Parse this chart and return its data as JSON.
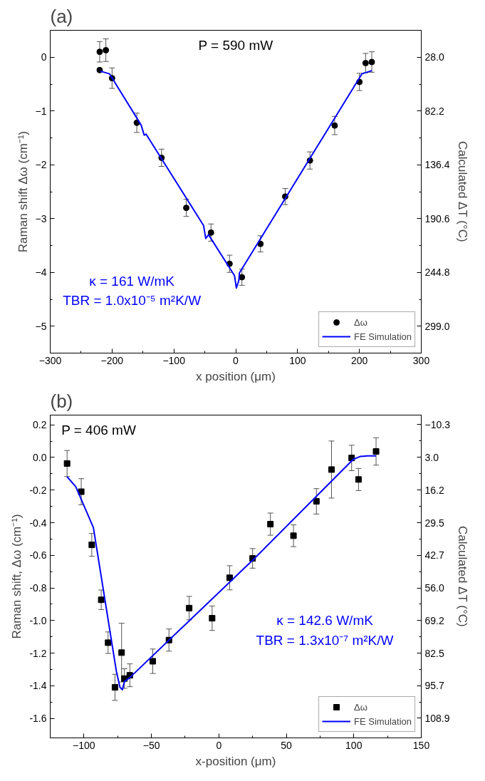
{
  "chart_data": [
    {
      "type": "scatter",
      "title": "(a)",
      "xlabel": "x position (μm)",
      "ylabel": "Raman shift Δω (cm⁻¹)",
      "y2label": "Calculated ΔT (°C)",
      "annotations": [
        "P = 590 mW",
        "κ = 161 W/mK",
        "TBR = 1.0x10⁻⁵ m²K/W"
      ],
      "xlim": [
        -300,
        300
      ],
      "xticks": [
        -300,
        -200,
        -100,
        0,
        100,
        200,
        300
      ],
      "ylim": [
        -5.5,
        0.5
      ],
      "yticks": [
        -5,
        -4,
        -3,
        -2,
        -1,
        0
      ],
      "y2lim": [
        326.1,
        0.9
      ],
      "y2ticks": [
        {
          "value": 28.0,
          "label": "28.0"
        },
        82.2,
        136.4,
        190.6,
        244.8,
        {
          "value": 299.0,
          "label": "299.0"
        }
      ],
      "legend": "bottom right",
      "grid": false,
      "series": [
        {
          "name": "Δω",
          "marker": "circle",
          "color": "#000000",
          "x": [
            -220,
            -210,
            -220,
            -200,
            -160,
            -120,
            -80,
            -40,
            -10,
            10,
            40,
            80,
            120,
            160,
            200,
            210,
            220
          ],
          "values": [
            0.1,
            0.13,
            -0.24,
            -0.39,
            -1.22,
            -1.87,
            -2.8,
            -3.26,
            -3.84,
            -4.09,
            -3.47,
            -2.59,
            -1.92,
            -1.27,
            -0.46,
            -0.11,
            -0.09
          ],
          "errors": [
            0.19,
            0.21,
            null,
            0.19,
            0.18,
            0.16,
            0.16,
            0.16,
            0.16,
            0.15,
            0.15,
            0.15,
            0.16,
            0.17,
            0.16,
            0.18,
            0.19
          ]
        },
        {
          "name": "FE Simulation",
          "type": "line",
          "color": "#0000ff",
          "x": [
            -219,
            -204,
            -153,
            -148,
            -145,
            -52,
            -48.5,
            -44,
            -2,
            1,
            5,
            6,
            204,
            220
          ],
          "values": [
            -0.26,
            -0.31,
            -1.26,
            -1.45,
            -1.43,
            -3.13,
            -3.37,
            -3.3,
            -4.06,
            -4.29,
            -4.15,
            -4.01,
            -0.31,
            -0.25
          ]
        }
      ]
    },
    {
      "type": "scatter",
      "title": "(b)",
      "xlabel": "x-position (μm)",
      "ylabel": "Raman shift, Δω (cm⁻¹)",
      "y2label": "Calculated ΔT (°C)",
      "annotations": [
        "P = 406 mW",
        "κ = 142.6 W/mK",
        "TBR = 1.3x10⁻⁷ m²K/W"
      ],
      "xlim": [
        -125,
        150
      ],
      "xticks": [
        -100,
        -50,
        0,
        50,
        100,
        150
      ],
      "ylim": [
        -1.72,
        0.26
      ],
      "yticks": [
        {
          "value": -1.6,
          "label": "-1.6"
        },
        {
          "value": -1.4,
          "label": "-1.4"
        },
        {
          "value": -1.2,
          "label": "-1.2"
        },
        {
          "value": -1.0,
          "label": "-1.0"
        },
        {
          "value": -0.8,
          "label": "-0.8"
        },
        {
          "value": -0.6,
          "label": "-0.6"
        },
        {
          "value": -0.4,
          "label": "-0.4"
        },
        {
          "value": -0.2,
          "label": "-0.2"
        },
        {
          "value": 0,
          "label": "0.0"
        },
        {
          "value": 0.2,
          "label": "0.2"
        }
      ],
      "y2lim": [
        116.9,
        -14.2
      ],
      "y2ticks": [
        -10.3,
        {
          "value": 3.0,
          "label": "3.0"
        },
        16.2,
        29.5,
        42.7,
        {
          "value": 56.0,
          "label": "56.0"
        },
        69.2,
        82.5,
        95.7,
        108.9
      ],
      "legend": "bottom right",
      "grid": false,
      "series": [
        {
          "name": "Δω",
          "marker": "square",
          "color": "#000000",
          "x": [
            -112.5,
            -102,
            -94.2,
            -87.2,
            -82.1,
            -77,
            -72.1,
            -70,
            -66,
            -49,
            -37,
            -22,
            -5,
            8,
            25,
            38.2,
            55.3,
            72.3,
            83.5,
            98.4,
            103.5,
            116.5
          ],
          "values": [
            -0.037,
            -0.21,
            -0.536,
            -0.873,
            -1.136,
            -1.41,
            -1.197,
            -1.356,
            -1.336,
            -1.25,
            -1.12,
            -0.924,
            -0.986,
            -0.738,
            -0.619,
            -0.409,
            -0.48,
            -0.269,
            -0.074,
            -0.003,
            -0.135,
            0.037
          ],
          "errors": [
            0.08,
            0.08,
            0.07,
            0.06,
            0.066,
            0.08,
            0.18,
            0.06,
            0.07,
            0.075,
            0.068,
            0.072,
            0.075,
            0.074,
            0.06,
            0.068,
            0.067,
            0.078,
            0.175,
            0.078,
            0.068,
            0.084
          ]
        },
        {
          "name": "FE Simulation",
          "type": "line",
          "color": "#0000ff",
          "x": [
            -112.5,
            -106,
            -93,
            -76,
            -73.3,
            -71.5,
            -70,
            -66,
            25.8,
            99.5,
            104.7,
            110,
            116.5
          ],
          "values": [
            -0.118,
            -0.18,
            -0.43,
            -1.31,
            -1.41,
            -1.425,
            -1.375,
            -1.35,
            -0.624,
            -0.012,
            0.006,
            0.01,
            0.01
          ]
        }
      ]
    }
  ]
}
